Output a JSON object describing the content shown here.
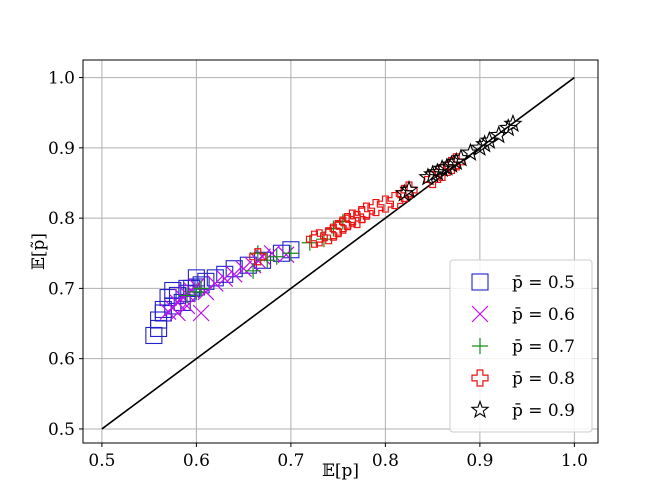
{
  "chart_data": {
    "type": "scatter",
    "title": "",
    "xlabel": "𝔼[p]",
    "ylabel": "𝔼[p̃]",
    "xlim": [
      0.48,
      1.025
    ],
    "ylim": [
      0.48,
      1.025
    ],
    "xticks": [
      "0.5",
      "0.6",
      "0.7",
      "0.8",
      "0.9",
      "1.0"
    ],
    "xtick_values": [
      0.5,
      0.6,
      0.7,
      0.8,
      0.9,
      1.0
    ],
    "yticks": [
      "0.5",
      "0.6",
      "0.7",
      "0.8",
      "0.9",
      "1.0"
    ],
    "ytick_values": [
      0.5,
      0.6,
      0.7,
      0.8,
      0.9,
      1.0
    ],
    "grid": true,
    "legend_position": "bottom-right",
    "reference_line": {
      "x": [
        0.5,
        1.0
      ],
      "y": [
        0.5,
        1.0
      ],
      "color": "#000000"
    },
    "series": [
      {
        "name": "p̄ = 0.5",
        "marker": "square",
        "color": "#2222cc",
        "x": [
          0.555,
          0.56,
          0.565,
          0.57,
          0.575,
          0.58,
          0.585,
          0.59,
          0.595,
          0.6,
          0.605,
          0.61,
          0.62,
          0.63,
          0.64,
          0.655,
          0.67,
          0.69,
          0.7,
          0.56,
          0.565,
          0.575,
          0.59,
          0.6
        ],
        "y": [
          0.633,
          0.643,
          0.665,
          0.687,
          0.697,
          0.69,
          0.68,
          0.693,
          0.7,
          0.702,
          0.705,
          0.71,
          0.715,
          0.72,
          0.728,
          0.733,
          0.74,
          0.75,
          0.755,
          0.655,
          0.67,
          0.675,
          0.7,
          0.715
        ]
      },
      {
        "name": "p̄ = 0.6",
        "marker": "x",
        "color": "#bb11ee",
        "x": [
          0.57,
          0.575,
          0.58,
          0.585,
          0.59,
          0.595,
          0.6,
          0.605,
          0.61,
          0.62,
          0.63,
          0.64,
          0.65,
          0.66,
          0.665,
          0.67,
          0.68,
          0.695,
          0.58,
          0.59
        ],
        "y": [
          0.667,
          0.672,
          0.68,
          0.688,
          0.692,
          0.697,
          0.703,
          0.665,
          0.695,
          0.707,
          0.714,
          0.72,
          0.728,
          0.733,
          0.74,
          0.745,
          0.75,
          0.748,
          0.665,
          0.675
        ]
      },
      {
        "name": "p̄ = 0.7",
        "marker": "plus",
        "color": "#1a8a1a",
        "x": [
          0.59,
          0.6,
          0.605,
          0.66,
          0.665,
          0.675,
          0.685,
          0.7,
          0.72,
          0.735,
          0.745,
          0.755
        ],
        "y": [
          0.69,
          0.695,
          0.7,
          0.725,
          0.75,
          0.74,
          0.745,
          0.75,
          0.765,
          0.77,
          0.785,
          0.795
        ]
      },
      {
        "name": "p̄ = 0.8",
        "marker": "cross",
        "color": "#ee1111",
        "x": [
          0.665,
          0.725,
          0.73,
          0.74,
          0.745,
          0.75,
          0.755,
          0.76,
          0.765,
          0.77,
          0.775,
          0.78,
          0.79,
          0.8,
          0.81,
          0.82,
          0.825,
          0.85,
          0.86,
          0.87,
          0.875
        ],
        "y": [
          0.745,
          0.77,
          0.772,
          0.775,
          0.78,
          0.785,
          0.79,
          0.795,
          0.8,
          0.798,
          0.805,
          0.81,
          0.815,
          0.82,
          0.825,
          0.835,
          0.84,
          0.855,
          0.865,
          0.875,
          0.88
        ]
      },
      {
        "name": "p̄ = 0.9",
        "marker": "star",
        "color": "#000000",
        "x": [
          0.82,
          0.825,
          0.845,
          0.85,
          0.855,
          0.86,
          0.865,
          0.87,
          0.875,
          0.88,
          0.89,
          0.9,
          0.905,
          0.91,
          0.92,
          0.93,
          0.935
        ],
        "y": [
          0.835,
          0.84,
          0.858,
          0.862,
          0.865,
          0.87,
          0.872,
          0.876,
          0.88,
          0.885,
          0.893,
          0.9,
          0.905,
          0.91,
          0.918,
          0.928,
          0.934
        ]
      }
    ]
  }
}
